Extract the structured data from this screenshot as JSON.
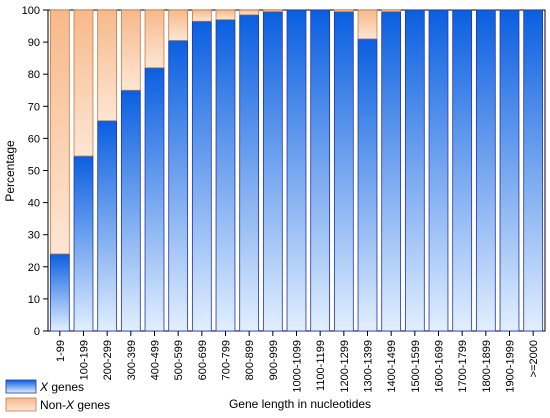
{
  "chart_data": {
    "type": "bar",
    "stacked": true,
    "title": "",
    "xlabel": "Gene length in nucleotides",
    "ylabel": "Percentage",
    "ylim": [
      0,
      100
    ],
    "yticks": [
      0,
      10,
      20,
      30,
      40,
      50,
      60,
      70,
      80,
      90,
      100
    ],
    "grid": false,
    "legend_position": "bottom-left",
    "categories": [
      "1-99",
      "100-199",
      "200-299",
      "300-399",
      "400-499",
      "500-599",
      "600-699",
      "700-799",
      "800-899",
      "900-999",
      "1000-1099",
      "1100-1199",
      "1200-1299",
      "1300-1399",
      "1400-1499",
      "1500-1599",
      "1600-1699",
      "1700-1799",
      "1800-1899",
      "1900-1999",
      ">=2000"
    ],
    "series": [
      {
        "name": "X genes",
        "legend_prefix": "",
        "legend_italic": "X",
        "legend_suffix": " genes",
        "color_top": "#0a5fe0",
        "color_bottom": "#e2efff",
        "values": [
          24,
          54.5,
          65.5,
          75,
          82,
          90.5,
          96.5,
          97,
          98.5,
          99.5,
          100,
          100,
          99.5,
          91,
          99.5,
          100,
          100,
          100,
          100,
          100,
          100
        ]
      },
      {
        "name": "Non-X genes",
        "legend_prefix": "Non-",
        "legend_italic": "X",
        "legend_suffix": " genes",
        "color_top": "#f7b98a",
        "color_bottom": "#fde6d4",
        "values": [
          76,
          45.5,
          34.5,
          25,
          18,
          9.5,
          3.5,
          3,
          1.5,
          0.5,
          0,
          0,
          0.5,
          9,
          0.5,
          0,
          0,
          0,
          0,
          0,
          0
        ]
      }
    ]
  }
}
